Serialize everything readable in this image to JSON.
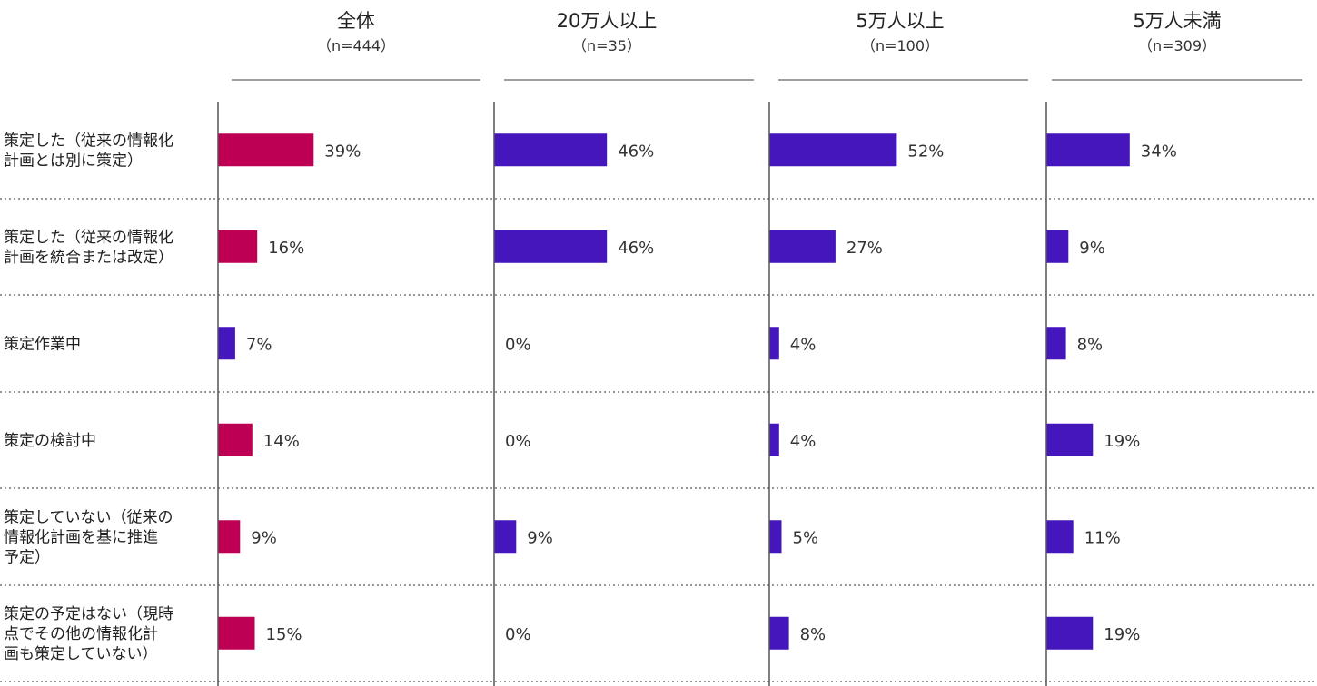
{
  "chart_data": {
    "type": "bar",
    "orientation": "horizontal",
    "panels": [
      {
        "title": "全体",
        "subtitle": "（n=444）"
      },
      {
        "title": "20万人以上",
        "subtitle": "（n=35）"
      },
      {
        "title": "5万人以上",
        "subtitle": "（n=100）"
      },
      {
        "title": "5万人未満",
        "subtitle": "（n=309）"
      }
    ],
    "categories": [
      [
        "策定した（従来の情報化",
        "計画とは別に策定）"
      ],
      [
        "策定した（従来の情報化",
        "計画を統合または改定）"
      ],
      [
        "策定作業中"
      ],
      [
        "策定の検討中"
      ],
      [
        "策定していない（従来の",
        "情報化計画を基に推進",
        "予定）"
      ],
      [
        "策定の予定はない（現時",
        "点でその他の情報化計",
        "画も策定していない）"
      ]
    ],
    "values": [
      [
        39,
        16,
        7,
        14,
        9,
        15
      ],
      [
        46,
        46,
        0,
        0,
        9,
        0
      ],
      [
        52,
        27,
        4,
        4,
        5,
        8
      ],
      [
        34,
        9,
        8,
        19,
        11,
        19
      ]
    ],
    "value_labels": [
      [
        "39%",
        "16%",
        "7%",
        "14%",
        "9%",
        "15%"
      ],
      [
        "46%",
        "46%",
        "0%",
        "0%",
        "9%",
        "0%"
      ],
      [
        "52%",
        "27%",
        "4%",
        "4%",
        "5%",
        "8%"
      ],
      [
        "34%",
        "9%",
        "8%",
        "19%",
        "11%",
        "19%"
      ]
    ],
    "unit": "%",
    "xlim": [
      0,
      100
    ],
    "colors": {
      "highlight": "#BE0055",
      "default": "#4416BB"
    },
    "highlight": [
      [
        true,
        true,
        false,
        true,
        true,
        true
      ],
      [
        false,
        false,
        false,
        false,
        false,
        false
      ],
      [
        false,
        false,
        false,
        false,
        false,
        false
      ],
      [
        false,
        false,
        false,
        false,
        false,
        false
      ]
    ]
  }
}
